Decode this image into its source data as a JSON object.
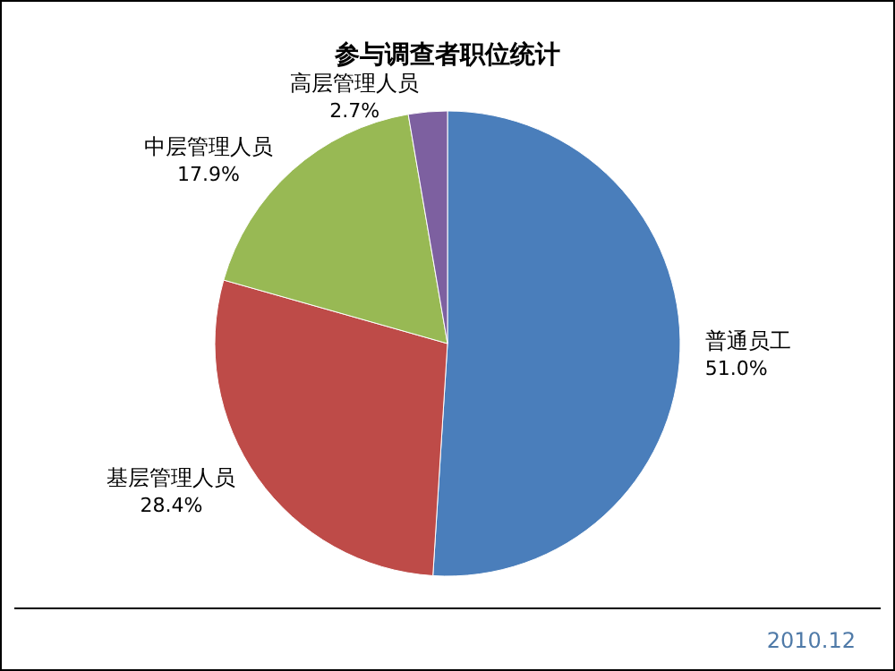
{
  "chart_data": {
    "type": "pie",
    "title": "参与调查者职位统计",
    "categories": [
      "普通员工",
      "基层管理人员",
      "中层管理人员",
      "高层管理人员"
    ],
    "values": [
      51.0,
      28.4,
      17.9,
      2.7
    ],
    "value_labels": [
      "51.0%",
      "28.4%",
      "17.9%",
      "2.7%"
    ],
    "colors": [
      "#4a7ebb",
      "#be4b48",
      "#98b954",
      "#7d60a0"
    ],
    "annotations": [
      "2010.12"
    ]
  }
}
